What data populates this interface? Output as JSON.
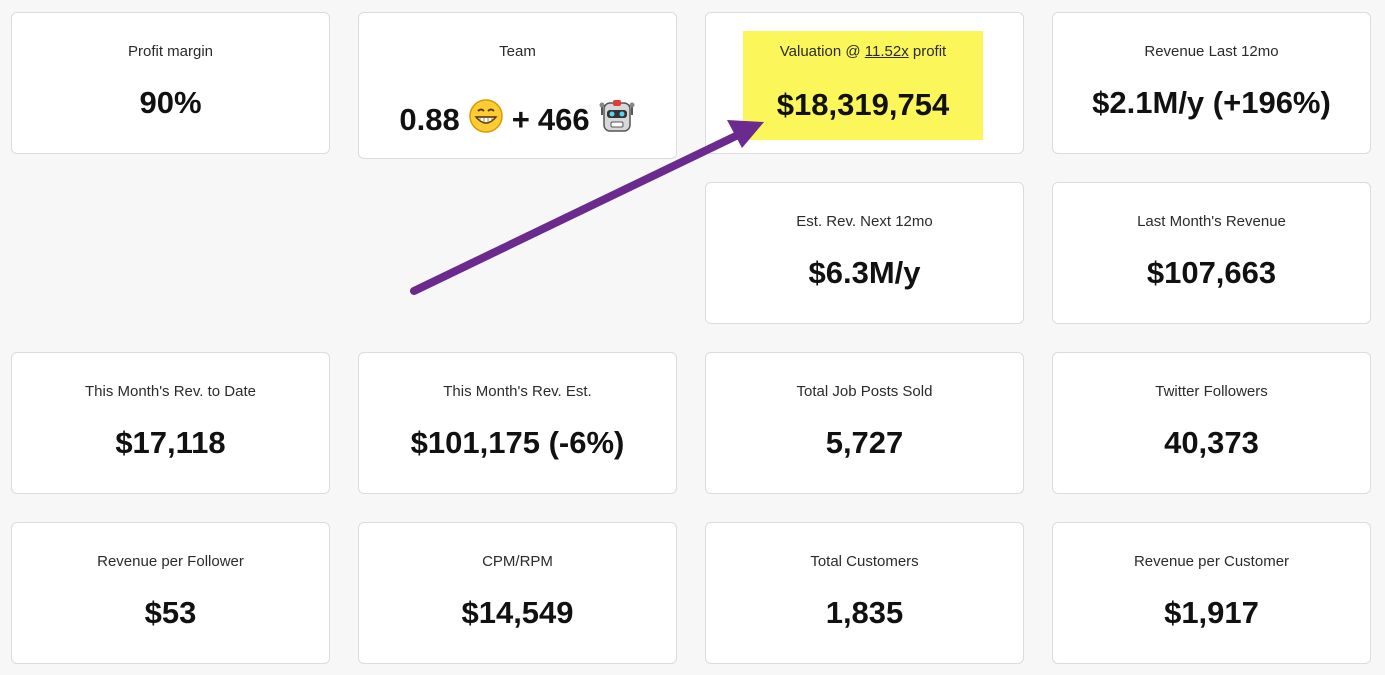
{
  "colors": {
    "background": "#f7f7f7",
    "card": "#ffffff",
    "highlight": "#fbf65a",
    "arrow": "#6a2a8e"
  },
  "cards": {
    "profit_margin": {
      "label": "Profit margin",
      "value": "90%"
    },
    "team": {
      "label": "Team",
      "human_count": "0.88",
      "plus": "+",
      "robot_count": "466",
      "human_icon": "grinning-face-icon",
      "robot_icon": "robot-icon"
    },
    "valuation": {
      "label_prefix": "Valuation @",
      "multiple": "11.52x",
      "label_suffix": "profit",
      "value": "$18,319,754"
    },
    "revenue_last_12mo": {
      "label": "Revenue Last 12mo",
      "value": "$2.1M/y (+196%)"
    },
    "est_rev_next_12mo": {
      "label": "Est. Rev. Next 12mo",
      "value": "$6.3M/y"
    },
    "last_month_revenue": {
      "label": "Last Month's Revenue",
      "value": "$107,663"
    },
    "this_month_rev_to_date": {
      "label": "This Month's Rev. to Date",
      "value": "$17,118"
    },
    "this_month_rev_est": {
      "label": "This Month's Rev. Est.",
      "value": "$101,175 (-6%)"
    },
    "total_job_posts_sold": {
      "label": "Total Job Posts Sold",
      "value": "5,727"
    },
    "twitter_followers": {
      "label": "Twitter Followers",
      "value": "40,373"
    },
    "revenue_per_follower": {
      "label": "Revenue per Follower",
      "value": "$53"
    },
    "cpm_rpm": {
      "label": "CPM/RPM",
      "value": "$14,549"
    },
    "total_customers": {
      "label": "Total Customers",
      "value": "1,835"
    },
    "revenue_per_customer": {
      "label": "Revenue per Customer",
      "value": "$1,917"
    }
  }
}
